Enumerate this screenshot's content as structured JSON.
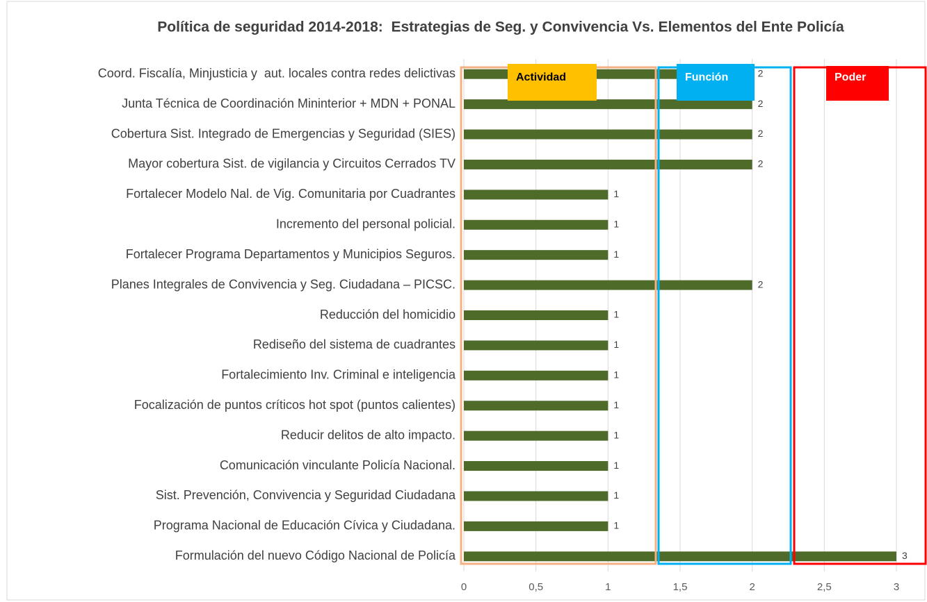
{
  "chart_data": {
    "type": "barh",
    "title": "Política de seguridad 2014-2018:  Estrategias de Seg. y Convivencia Vs. Elementos del Ente Policía",
    "categories": [
      "Coord. Fiscalía, Minjusticia y  aut. locales contra redes delictivas",
      "Junta Técnica de Coordinación Mininterior + MDN + PONAL",
      "Cobertura Sist. Integrado de Emergencias y Seguridad (SIES)",
      "Mayor cobertura Sist. de vigilancia y Circuitos Cerrados TV",
      "Fortalecer Modelo Nal. de Vig. Comunitaria por Cuadrantes",
      "Incremento del personal policial.",
      "Fortalecer Programa Departamentos y Municipios Seguros.",
      "Planes Integrales de Convivencia y Seg. Ciudadana – PICSC.",
      "Reducción del homicidio",
      "Rediseño del sistema de cuadrantes",
      "Fortalecimiento Inv. Criminal e inteligencia",
      "Focalización de puntos críticos hot spot (puntos calientes)",
      "Reducir delitos de alto impacto.",
      "Comunicación vinculante Policía Nacional.",
      "Sist. Prevención, Convivencia y Seguridad Ciudadana",
      "Programa Nacional de Educación Cívica y Ciudadana.",
      "Formulación del nuevo Código Nacional de Policía"
    ],
    "values": [
      2,
      2,
      2,
      2,
      1,
      1,
      1,
      2,
      1,
      1,
      1,
      1,
      1,
      1,
      1,
      1,
      3
    ],
    "color": "#4e6b2a",
    "xlim": [
      0,
      3
    ],
    "xticks": [
      0,
      {
        "value": 0.5,
        "label": "0,5"
      },
      1,
      {
        "value": 1.5,
        "label": "1,5"
      },
      2,
      {
        "value": 2.5,
        "label": "2,5"
      },
      3
    ],
    "grid": true,
    "annotations": [
      {
        "text": "Actividad",
        "color": "#ffc000",
        "border": "#f4b183",
        "text_color": "#000000"
      },
      {
        "text": "Función",
        "color": "#00b0f0",
        "border": "#00b0f0",
        "text_color": "#ffffff"
      },
      {
        "text": "Poder",
        "color": "#ff0000",
        "border": "#ff0000",
        "text_color": "#ffffff"
      }
    ]
  }
}
